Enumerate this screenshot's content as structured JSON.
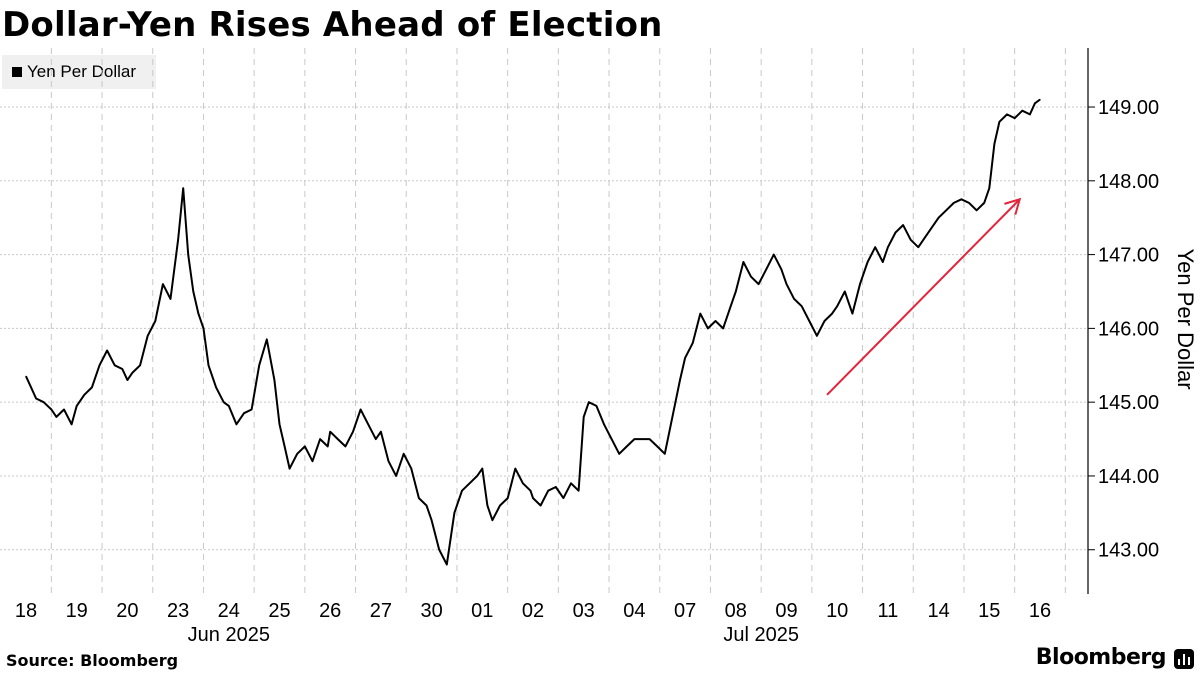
{
  "chart_data": {
    "type": "line",
    "title": "Dollar-Yen Rises Ahead of Election",
    "legend": [
      "Yen Per Dollar"
    ],
    "ylabel": "Yen Per Dollar",
    "xlabel": "",
    "ylim": [
      142.4,
      149.8
    ],
    "yticks": [
      "143.00",
      "144.00",
      "145.00",
      "146.00",
      "147.00",
      "148.00",
      "149.00"
    ],
    "ytick_values": [
      143,
      144,
      145,
      146,
      147,
      148,
      149
    ],
    "categories": [
      "18",
      "19",
      "20",
      "23",
      "24",
      "25",
      "26",
      "27",
      "30",
      "01",
      "02",
      "03",
      "04",
      "07",
      "08",
      "09",
      "10",
      "11",
      "14",
      "15",
      "16"
    ],
    "month_labels": [
      {
        "label": "Jun 2025",
        "center_index": 4
      },
      {
        "label": "Jul 2025",
        "center_index": 14.5
      }
    ],
    "grid": true,
    "series": [
      {
        "name": "Yen Per Dollar",
        "color": "#000000",
        "x": [
          0,
          0.1,
          0.2,
          0.35,
          0.5,
          0.6,
          0.75,
          0.9,
          1.0,
          1.15,
          1.3,
          1.45,
          1.6,
          1.75,
          1.9,
          2.0,
          2.1,
          2.25,
          2.4,
          2.55,
          2.7,
          2.85,
          3.0,
          3.1,
          3.2,
          3.3,
          3.4,
          3.5,
          3.6,
          3.75,
          3.9,
          4.0,
          4.15,
          4.3,
          4.45,
          4.6,
          4.75,
          4.9,
          5.0,
          5.1,
          5.2,
          5.35,
          5.5,
          5.65,
          5.8,
          5.95,
          6.0,
          6.15,
          6.3,
          6.45,
          6.6,
          6.75,
          6.9,
          7.0,
          7.15,
          7.3,
          7.45,
          7.6,
          7.75,
          7.9,
          8.0,
          8.15,
          8.3,
          8.45,
          8.6,
          8.75,
          8.9,
          9.0,
          9.1,
          9.2,
          9.35,
          9.5,
          9.65,
          9.8,
          9.95,
          10.0,
          10.15,
          10.3,
          10.45,
          10.6,
          10.75,
          10.9,
          11.0,
          11.1,
          11.25,
          11.4,
          11.55,
          11.7,
          11.85,
          12.0,
          12.15,
          12.3,
          12.45,
          12.6,
          12.75,
          12.9,
          13.0,
          13.15,
          13.3,
          13.45,
          13.6,
          13.75,
          13.9,
          14.0,
          14.15,
          14.3,
          14.45,
          14.6,
          14.75,
          14.9,
          15.0,
          15.15,
          15.3,
          15.45,
          15.6,
          15.75,
          15.9,
          16.0,
          16.15,
          16.3,
          16.45,
          16.6,
          16.75,
          16.9,
          17.0,
          17.15,
          17.3,
          17.45,
          17.6,
          17.75,
          17.9,
          18.0,
          18.15,
          18.3,
          18.45,
          18.6,
          18.75,
          18.9,
          19.0,
          19.1,
          19.2,
          19.35,
          19.5,
          19.65,
          19.8,
          19.9,
          20.0
        ],
        "values": [
          145.35,
          145.2,
          145.05,
          145.0,
          144.9,
          144.8,
          144.9,
          144.7,
          144.95,
          145.1,
          145.2,
          145.5,
          145.7,
          145.5,
          145.45,
          145.3,
          145.4,
          145.5,
          145.9,
          146.1,
          146.6,
          146.4,
          147.2,
          147.9,
          147.0,
          146.5,
          146.2,
          146.0,
          145.5,
          145.2,
          145.0,
          144.95,
          144.7,
          144.85,
          144.9,
          145.5,
          145.85,
          145.3,
          144.7,
          144.4,
          144.1,
          144.3,
          144.4,
          144.2,
          144.5,
          144.4,
          144.6,
          144.5,
          144.4,
          144.6,
          144.9,
          144.7,
          144.5,
          144.6,
          144.2,
          144.0,
          144.3,
          144.1,
          143.7,
          143.6,
          143.4,
          143.0,
          142.8,
          143.5,
          143.8,
          143.9,
          144.0,
          144.1,
          143.6,
          143.4,
          143.6,
          143.7,
          144.1,
          143.9,
          143.8,
          143.7,
          143.6,
          143.8,
          143.85,
          143.7,
          143.9,
          143.8,
          144.8,
          145.0,
          144.95,
          144.7,
          144.5,
          144.3,
          144.4,
          144.5,
          144.5,
          144.5,
          144.4,
          144.3,
          144.8,
          145.3,
          145.6,
          145.8,
          146.2,
          146.0,
          146.1,
          146.0,
          146.3,
          146.5,
          146.9,
          146.7,
          146.6,
          146.8,
          147.0,
          146.8,
          146.6,
          146.4,
          146.3,
          146.1,
          145.9,
          146.1,
          146.2,
          146.3,
          146.5,
          146.2,
          146.6,
          146.9,
          147.1,
          146.9,
          147.1,
          147.3,
          147.4,
          147.2,
          147.1,
          147.25,
          147.4,
          147.5,
          147.6,
          147.7,
          147.75,
          147.7,
          147.6,
          147.7,
          147.9,
          148.5,
          148.8,
          148.9,
          148.85,
          148.95,
          148.9,
          149.05,
          149.1
        ]
      }
    ],
    "annotations": [
      {
        "type": "arrow",
        "color": "#e3243b",
        "from_index": 15.8,
        "from_value": 145.1,
        "to_index": 19.6,
        "to_value": 147.75
      }
    ]
  },
  "footer": {
    "source": "Source: Bloomberg",
    "brand": "Bloomberg"
  }
}
